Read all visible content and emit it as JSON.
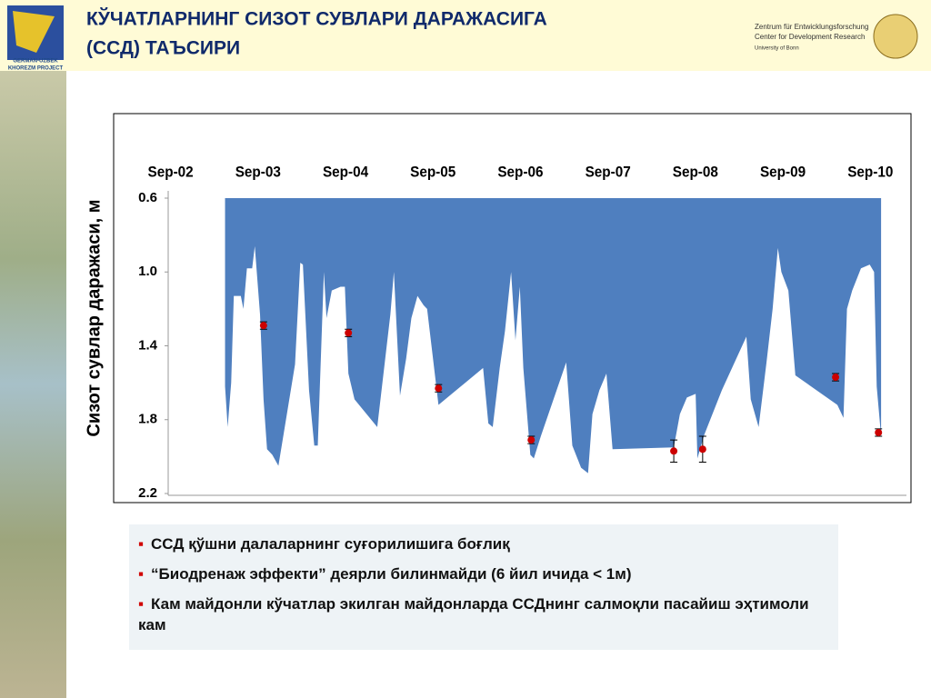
{
  "header": {
    "title_lines": [
      "КЎЧАТЛАРНИНГ СИЗОТ СУВЛАРИ ДАРАЖАСИГА",
      "(ССД) ТАЪСИРИ"
    ],
    "logo_left": [
      "GERMAN-UZBEK",
      "KHOREZM PROJECT"
    ],
    "logo_right": [
      "Zentrum für Entwicklungsforschung",
      "Center for Development Research",
      "University of Bonn"
    ]
  },
  "chart_data": {
    "type": "area",
    "ylabel": "Сизот сувлар даражаси, м",
    "y_inverted": true,
    "xaxis_position": "top",
    "xlim": [
      2002.64,
      2011.08
    ],
    "xticks": [
      {
        "value": 2002.667,
        "label": "Sep-02"
      },
      {
        "value": 2003.667,
        "label": "Sep-03"
      },
      {
        "value": 2004.667,
        "label": "Sep-04"
      },
      {
        "value": 2005.667,
        "label": "Sep-05"
      },
      {
        "value": 2006.667,
        "label": "Sep-06"
      },
      {
        "value": 2007.667,
        "label": "Sep-07"
      },
      {
        "value": 2008.667,
        "label": "Sep-08"
      },
      {
        "value": 2009.667,
        "label": "Sep-09"
      },
      {
        "value": 2010.667,
        "label": "Sep-10"
      }
    ],
    "ylim": [
      0.6,
      2.2
    ],
    "yticks": [
      0.6,
      {
        "value": 1.0,
        "label": "1.0"
      },
      1.4,
      1.8,
      2.2
    ],
    "series": [
      {
        "type": "area",
        "color": "#4f7fbf",
        "x": [
          2003.29,
          2003.32,
          2003.36,
          2003.39,
          2003.47,
          2003.5,
          2003.54,
          2003.6,
          2003.63,
          2003.69,
          2003.73,
          2003.77,
          2003.83,
          2003.9,
          2004.09,
          2004.15,
          2004.18,
          2004.25,
          2004.31,
          2004.35,
          2004.42,
          2004.45,
          2004.51,
          2004.61,
          2004.66,
          2004.7,
          2004.77,
          2005.03,
          2005.18,
          2005.22,
          2005.29,
          2005.36,
          2005.42,
          2005.49,
          2005.56,
          2005.6,
          2005.73,
          2006.24,
          2006.3,
          2006.35,
          2006.43,
          2006.49,
          2006.56,
          2006.61,
          2006.66,
          2006.7,
          2006.78,
          2006.82,
          2006.9,
          2007.19,
          2007.26,
          2007.36,
          2007.44,
          2007.49,
          2007.57,
          2007.65,
          2007.72,
          2008.42,
          2008.49,
          2008.57,
          2008.67,
          2008.69,
          2008.77,
          2008.97,
          2009.25,
          2009.3,
          2009.39,
          2009.48,
          2009.55,
          2009.61,
          2009.65,
          2009.73,
          2009.81,
          2010.29,
          2010.36,
          2010.4,
          2010.46,
          2010.56,
          2010.66,
          2010.71,
          2010.74,
          2010.79
        ],
        "values": [
          1.62,
          1.84,
          1.6,
          1.13,
          1.13,
          1.2,
          0.98,
          0.98,
          0.86,
          1.23,
          1.69,
          1.96,
          1.99,
          2.05,
          1.5,
          0.95,
          0.96,
          1.64,
          1.94,
          1.94,
          1.0,
          1.25,
          1.1,
          1.08,
          1.08,
          1.55,
          1.69,
          1.84,
          1.23,
          1.0,
          1.67,
          1.47,
          1.25,
          1.13,
          1.18,
          1.2,
          1.72,
          1.52,
          1.82,
          1.84,
          1.52,
          1.32,
          1.0,
          1.37,
          1.08,
          1.52,
          1.99,
          2.01,
          1.89,
          1.49,
          1.94,
          2.06,
          2.09,
          1.77,
          1.64,
          1.55,
          1.96,
          1.95,
          1.77,
          1.68,
          1.66,
          2.01,
          1.88,
          1.64,
          1.35,
          1.69,
          1.84,
          1.49,
          1.2,
          0.87,
          1.0,
          1.1,
          1.56,
          1.72,
          1.79,
          1.2,
          1.1,
          0.98,
          0.96,
          1.0,
          1.62,
          1.89
        ]
      },
      {
        "type": "scatter",
        "color": "#cc0000",
        "x": [
          2003.73,
          2004.7,
          2005.73,
          2006.79,
          2008.42,
          2008.75,
          2010.27,
          2010.76
        ],
        "values": [
          1.29,
          1.33,
          1.63,
          1.91,
          1.97,
          1.96,
          1.57,
          1.87
        ],
        "errors": [
          0.02,
          0.02,
          0.02,
          0.02,
          0.06,
          0.07,
          0.02,
          0.02
        ]
      }
    ]
  },
  "bullets": [
    "ССД қўшни далаларнинг суғорилишига боғлиқ",
    "“Биодренаж эффекти” деярли билинмайди (6 йил ичида < 1м)",
    "Кам майдонли кўчатлар экилган майдонларда ССДнинг салмоқли пасайиш эҳтимоли кам"
  ]
}
